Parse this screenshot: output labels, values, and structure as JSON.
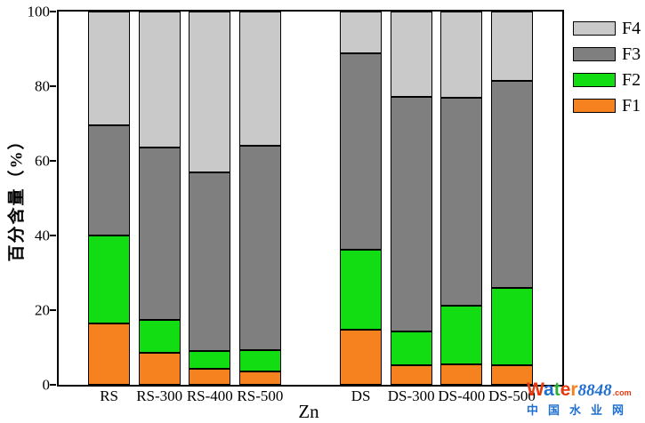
{
  "chart_data": {
    "type": "bar",
    "stacked": true,
    "orientation": "vertical",
    "xlabel": "Zn",
    "ylabel": "百分含量（%）",
    "ylim": [
      0,
      100
    ],
    "yticks": [
      0,
      20,
      40,
      60,
      80,
      100
    ],
    "grid": false,
    "categories": [
      "RS",
      "RS-300",
      "RS-400",
      "RS-500",
      "DS",
      "DS-300",
      "DS-400",
      "DS-500"
    ],
    "group_break_after_index": 3,
    "series": [
      {
        "name": "F1",
        "color": "#F5821F",
        "values": [
          16.5,
          8.5,
          4.3,
          3.6,
          14.7,
          5.3,
          5.5,
          5.2
        ]
      },
      {
        "name": "F2",
        "color": "#12DD12",
        "values": [
          23.5,
          9.0,
          4.7,
          5.6,
          21.5,
          8.9,
          15.8,
          20.8
        ]
      },
      {
        "name": "F3",
        "color": "#7F7F7F",
        "values": [
          29.5,
          46.0,
          48.0,
          54.8,
          52.7,
          62.9,
          55.7,
          55.5
        ]
      },
      {
        "name": "F4",
        "color": "#C9C9C9",
        "values": [
          30.5,
          36.5,
          43.0,
          36.0,
          11.1,
          22.9,
          23.0,
          18.5
        ]
      }
    ],
    "legend": {
      "position": "top-right-outside",
      "entries": [
        "F4",
        "F3",
        "F2",
        "F1"
      ]
    }
  },
  "watermark": {
    "brand_letters": [
      {
        "ch": "W",
        "color": "#e8380d"
      },
      {
        "ch": "a",
        "color": "#1f6fd0"
      },
      {
        "ch": "t",
        "color": "#2fae3c"
      },
      {
        "ch": "e",
        "color": "#e8380d"
      },
      {
        "ch": "r",
        "color": "#f5821f"
      }
    ],
    "number": "8848",
    "number_color": "#1f6fd0",
    "tld": ".com",
    "tld_color": "#e8380d",
    "subtitle": "中国水业网",
    "subtitle_color": "#1f6fd0"
  }
}
